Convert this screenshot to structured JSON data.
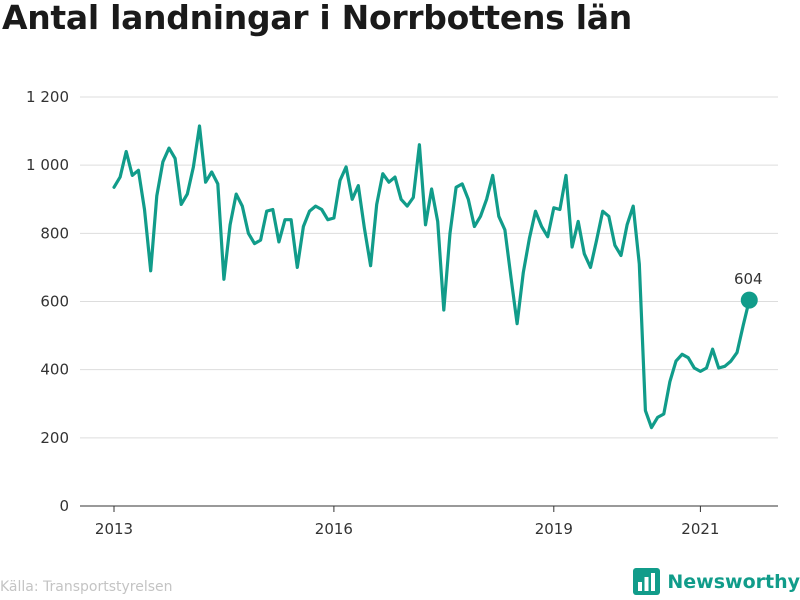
{
  "header": {
    "title": "Antal landningar i Norrbottens län"
  },
  "footer": {
    "source": "Källa: Transportstyrelsen",
    "brand": "Newsworthy",
    "brand_icon": "bar-chart-logo-icon"
  },
  "colors": {
    "line": "#119c8a",
    "grid": "#dddddd",
    "axis": "#333333",
    "source": "#c4c4c4"
  },
  "chart_data": {
    "type": "line",
    "title": "Antal landningar i Norrbottens län",
    "xlabel": "",
    "ylabel": "",
    "ylim": [
      0,
      1200
    ],
    "yticks": [
      0,
      200,
      400,
      600,
      800,
      1000,
      1200
    ],
    "ytick_labels": [
      "0",
      "200",
      "400",
      "600",
      "800",
      "1 000",
      "1 200"
    ],
    "xticks": [
      2013,
      2016,
      2019,
      2021
    ],
    "xtick_labels": [
      "2013",
      "2016",
      "2019",
      "2021"
    ],
    "grid": true,
    "series": [
      {
        "start": "2013-01",
        "frequency": "monthly",
        "values": [
          935,
          965,
          1040,
          970,
          985,
          870,
          690,
          910,
          1010,
          1050,
          1020,
          885,
          915,
          995,
          1115,
          950,
          980,
          945,
          665,
          825,
          915,
          880,
          800,
          770,
          780,
          865,
          870,
          775,
          840,
          840,
          700,
          820,
          865,
          880,
          870,
          840,
          845,
          955,
          995,
          900,
          940,
          815,
          705,
          885,
          975,
          950,
          965,
          900,
          880,
          905,
          1060,
          825,
          930,
          835,
          575,
          800,
          935,
          945,
          900,
          820,
          850,
          900,
          970,
          850,
          810,
          670,
          535,
          685,
          785,
          865,
          820,
          790,
          875,
          870,
          970,
          760,
          835,
          740,
          700,
          780,
          865,
          850,
          765,
          735,
          825,
          880,
          710,
          280,
          230,
          260,
          270,
          365,
          425,
          445,
          435,
          405,
          395,
          405,
          460,
          405,
          410,
          425,
          450,
          530,
          604
        ]
      }
    ],
    "annotations": [
      {
        "label": "604",
        "value": 604,
        "at": "last"
      }
    ]
  }
}
